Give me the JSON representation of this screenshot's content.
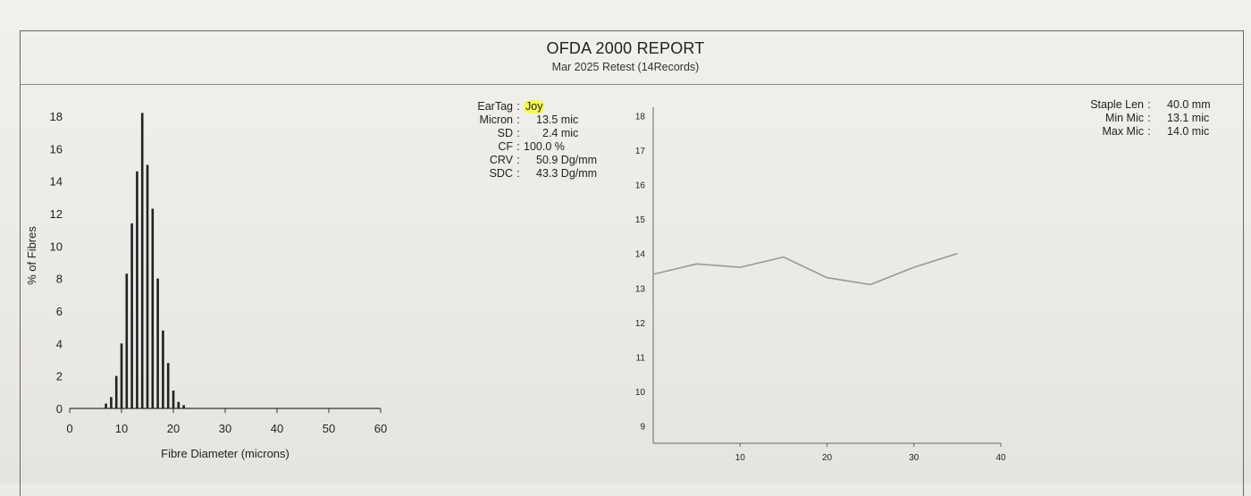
{
  "header": {
    "title": "OFDA 2000 REPORT",
    "subtitle": "Mar 2025 Retest (14Records)"
  },
  "stats_left": [
    {
      "label": "EarTag",
      "value": "Joy",
      "highlight": true
    },
    {
      "label": "Micron",
      "value": "13.5 mic"
    },
    {
      "label": "SD",
      "value": "2.4 mic"
    },
    {
      "label": "CF",
      "value": "100.0 %"
    },
    {
      "label": "CRV",
      "value": "50.9 Dg/mm"
    },
    {
      "label": "SDC",
      "value": "43.3 Dg/mm"
    }
  ],
  "stats_right": [
    {
      "label": "Staple Len",
      "value": "40.0 mm"
    },
    {
      "label": "Min Mic",
      "value": "13.1 mic"
    },
    {
      "label": "Max Mic",
      "value": "14.0 mic"
    }
  ],
  "highlight_color": "#f6f85a",
  "chart_data": [
    {
      "type": "bar",
      "title": "",
      "xlabel": "Fibre Diameter (microns)",
      "ylabel": "% of Fibres",
      "xlim": [
        0,
        60
      ],
      "ylim": [
        0,
        18
      ],
      "xticks": [
        0,
        10,
        20,
        30,
        40,
        50,
        60
      ],
      "yticks": [
        0,
        2,
        4,
        6,
        8,
        10,
        12,
        14,
        16,
        18
      ],
      "x": [
        7,
        8,
        9,
        10,
        11,
        12,
        13,
        14,
        15,
        16,
        17,
        18,
        19,
        20,
        21,
        22
      ],
      "values": [
        0.3,
        0.7,
        2.0,
        4.0,
        8.3,
        11.4,
        14.6,
        18.2,
        15.0,
        12.3,
        8.0,
        4.8,
        2.8,
        1.1,
        0.4,
        0.2
      ]
    },
    {
      "type": "line",
      "title": "",
      "xlabel": "",
      "ylabel": "",
      "xlim": [
        0,
        40
      ],
      "ylim": [
        8.5,
        18.5
      ],
      "xticks": [
        10,
        20,
        30,
        40
      ],
      "yticks": [
        9,
        10,
        11,
        12,
        13,
        14,
        15,
        16,
        17,
        18
      ],
      "x": [
        0,
        5,
        10,
        15,
        20,
        25,
        30,
        35
      ],
      "y": [
        13.4,
        13.7,
        13.6,
        13.9,
        13.3,
        13.1,
        13.6,
        14.0
      ]
    }
  ]
}
